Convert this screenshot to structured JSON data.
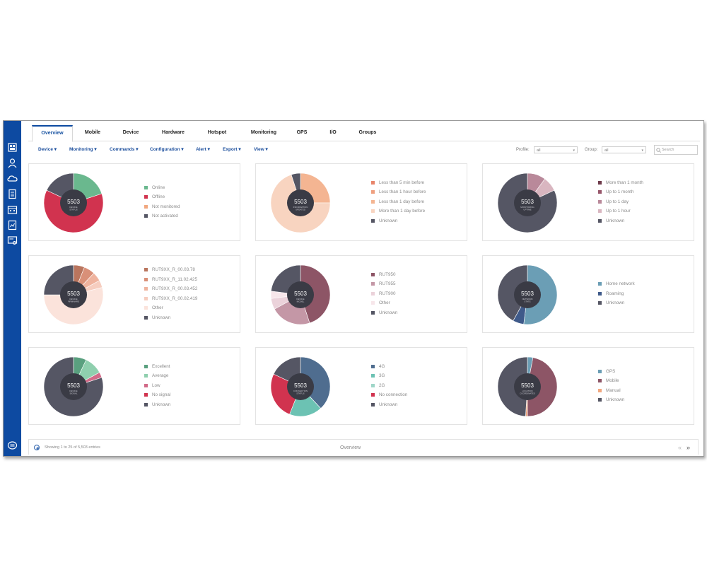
{
  "tabs": [
    {
      "label": "Overview",
      "active": true
    },
    {
      "label": "Mobile"
    },
    {
      "label": "Device"
    },
    {
      "label": "Hardware"
    },
    {
      "label": "Hotspot"
    },
    {
      "label": "Monitoring"
    },
    {
      "label": "GPS"
    },
    {
      "label": "I/O"
    },
    {
      "label": "Groups"
    }
  ],
  "menus": [
    "Device",
    "Monitoring",
    "Commands",
    "Configuration",
    "Alert",
    "Export",
    "View"
  ],
  "filters": {
    "profile_label": "Profile:",
    "profile_value": "all",
    "group_label": "Group:",
    "group_value": "all",
    "search_placeholder": "Search"
  },
  "sidebar_icons": [
    "devices-icon",
    "user-icon",
    "cloud-icon",
    "document-icon",
    "calendar-icon",
    "report-icon",
    "certificate-icon",
    "chat-icon"
  ],
  "cards": [
    {
      "total": "5503",
      "caption": "DEVICE STATUS",
      "legend": [
        {
          "label": "Online",
          "color": "#6ab88e",
          "value": 20
        },
        {
          "label": "Offline",
          "color": "#d1334f",
          "value": 62
        },
        {
          "label": "Not monitored",
          "color": "#f1a77f",
          "value": 0
        },
        {
          "label": "Not activated",
          "color": "#555664",
          "value": 18
        }
      ]
    },
    {
      "total": "5503",
      "caption": "INFORMATION UPDATED",
      "legend": [
        {
          "label": "Less than 5 min before",
          "color": "#e8856b",
          "value": 0
        },
        {
          "label": "Less than 1 hour before",
          "color": "#efa080",
          "value": 0
        },
        {
          "label": "Less than 1 day before",
          "color": "#f4b592",
          "value": 25
        },
        {
          "label": "More than 1 day before",
          "color": "#f8d4c0",
          "value": 70
        },
        {
          "label": "Unknown",
          "color": "#555664",
          "value": 5
        }
      ]
    },
    {
      "total": "5503",
      "caption": "MONITORING UPTIME",
      "legend": [
        {
          "label": "More than 1 month",
          "color": "#6e3a4a",
          "value": 0
        },
        {
          "label": "Up to 1 month",
          "color": "#97566a",
          "value": 0
        },
        {
          "label": "Up to 1 day",
          "color": "#b9899a",
          "value": 10
        },
        {
          "label": "Up to 1 hour",
          "color": "#d9b6c0",
          "value": 8
        },
        {
          "label": "Unknown",
          "color": "#555664",
          "value": 82
        }
      ]
    },
    {
      "total": "5503",
      "caption": "DEVICE FIRMWARE",
      "legend": [
        {
          "label": "RUT9XX_R_00.03.78",
          "color": "#b9755e",
          "value": 6
        },
        {
          "label": "RUT9XX_R_11.02.425",
          "color": "#d99078",
          "value": 6
        },
        {
          "label": "RUT9XX_R_00.03.452",
          "color": "#efb39e",
          "value": 5
        },
        {
          "label": "RUT9XX_R_00.02.419",
          "color": "#f6cdbf",
          "value": 4
        },
        {
          "label": "Other",
          "color": "#fbe3db",
          "value": 54
        },
        {
          "label": "Unknown",
          "color": "#555664",
          "value": 25
        }
      ]
    },
    {
      "total": "5503",
      "caption": "DEVICE MODEL",
      "legend": [
        {
          "label": "RUT950",
          "color": "#8d5566",
          "value": 45
        },
        {
          "label": "RUT955",
          "color": "#c497a6",
          "value": 22
        },
        {
          "label": "RUT900",
          "color": "#ebd2da",
          "value": 6
        },
        {
          "label": "Other",
          "color": "#f7e6ea",
          "value": 4
        },
        {
          "label": "Unknown",
          "color": "#555664",
          "value": 23
        }
      ]
    },
    {
      "total": "5503",
      "caption": "NETWORK STATE",
      "legend": [
        {
          "label": "Home network",
          "color": "#6b9eb5",
          "value": 52
        },
        {
          "label": "Roaming",
          "color": "#3f5a8a",
          "value": 6
        },
        {
          "label": "Unknown",
          "color": "#555664",
          "value": 42
        }
      ]
    },
    {
      "total": "5503",
      "caption": "DEVICE SIGNAL",
      "legend": [
        {
          "label": "Excellent",
          "color": "#5aa07f",
          "value": 7
        },
        {
          "label": "Average",
          "color": "#8fcfae",
          "value": 10
        },
        {
          "label": "Low",
          "color": "#d26a88",
          "value": 3
        },
        {
          "label": "No signal",
          "color": "#d1334f",
          "value": 0
        },
        {
          "label": "Unknown",
          "color": "#555664",
          "value": 80
        }
      ]
    },
    {
      "total": "5503",
      "caption": "CONNECTION STATUS",
      "legend": [
        {
          "label": "4G",
          "color": "#4f6d8f",
          "value": 38
        },
        {
          "label": "3G",
          "color": "#6cc2b3",
          "value": 18
        },
        {
          "label": "2G",
          "color": "#9fd6c8",
          "value": 0
        },
        {
          "label": "No connection",
          "color": "#d1334f",
          "value": 26
        },
        {
          "label": "Unknown",
          "color": "#555664",
          "value": 18
        }
      ]
    },
    {
      "total": "5503",
      "caption": "LOCATION COORDINATES",
      "legend": [
        {
          "label": "GPS",
          "color": "#6b9eb5",
          "value": 3
        },
        {
          "label": "Mobile",
          "color": "#8d5566",
          "value": 47
        },
        {
          "label": "Manual",
          "color": "#f1a77f",
          "value": 1
        },
        {
          "label": "Unknown",
          "color": "#555664",
          "value": 49
        }
      ]
    }
  ],
  "footer": {
    "entries_text": "Showing 1 to 25 of 5,503 entries",
    "title": "Overview",
    "prev": "«",
    "next": "»"
  }
}
